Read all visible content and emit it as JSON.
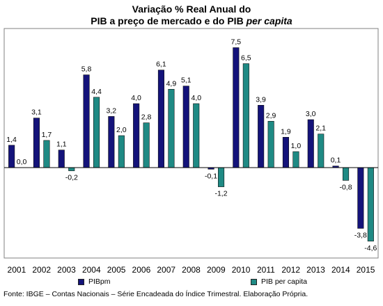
{
  "title_line1": "Variação % Real Anual do",
  "title_line2_main": "PIB a preço de mercado e do PIB",
  "title_line2_italic": "per capita",
  "source": "Fonte: IBGE – Contas Nacionais – Série Encadeada do Índice Trimestral. Elaboração Própria.",
  "colors": {
    "series1": "#14137a",
    "series2": "#1f8a84"
  },
  "chart_data": {
    "type": "bar",
    "categories": [
      "2001",
      "2002",
      "2003",
      "2004",
      "2005",
      "2006",
      "2007",
      "2008",
      "2009",
      "2010",
      "2011",
      "2012",
      "2013",
      "2014",
      "2015"
    ],
    "series": [
      {
        "name": "PIBpm",
        "values": [
          1.4,
          3.1,
          1.1,
          5.8,
          3.2,
          4.0,
          6.1,
          5.1,
          -0.1,
          7.5,
          3.9,
          1.9,
          3.0,
          0.1,
          -3.8
        ]
      },
      {
        "name": "PIB per capita",
        "values": [
          0.0,
          1.7,
          -0.2,
          4.4,
          2.0,
          2.8,
          4.9,
          4.0,
          -1.2,
          6.5,
          2.9,
          1.0,
          2.1,
          -0.8,
          -4.6
        ]
      }
    ],
    "value_labels": [
      [
        "1,4",
        "3,1",
        "1,1",
        "5,8",
        "3,2",
        "4,0",
        "6,1",
        "5,1",
        "-0,1",
        "7,5",
        "3,9",
        "1,9",
        "3,0",
        "0,1",
        "-3,8"
      ],
      [
        "0,0",
        "1,7",
        "-0,2",
        "4,4",
        "2,0",
        "2,8",
        "4,9",
        "4,0",
        "-1,2",
        "6,5",
        "2,9",
        "1,0",
        "2,1",
        "-0,8",
        "-4,6"
      ]
    ],
    "legend_position": "bottom",
    "grid": false
  }
}
